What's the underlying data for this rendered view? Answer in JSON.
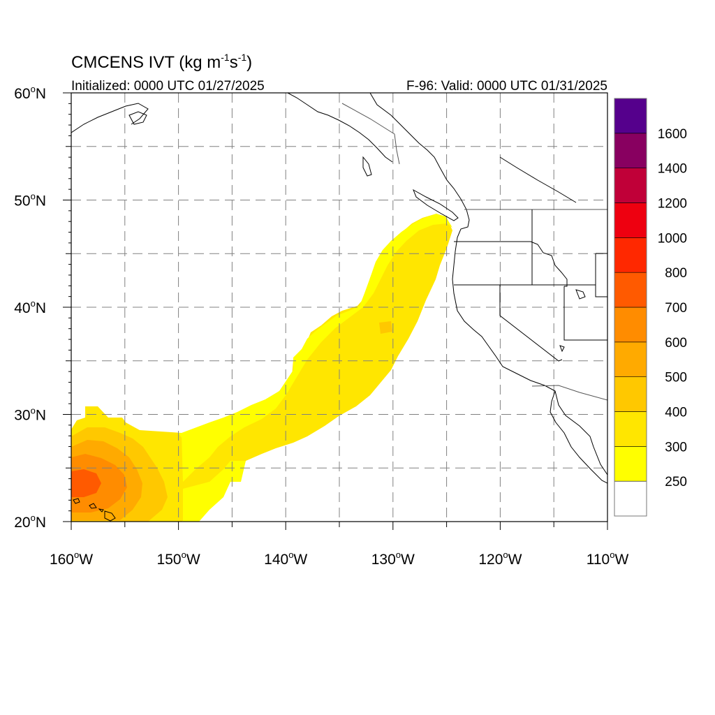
{
  "title": {
    "main": "CMCENS IVT (kg m",
    "sup1": "-1",
    "mid": "s",
    "sup2": "-1",
    "close": ")"
  },
  "subtitle_left": "Initialized: 0000 UTC 01/27/2025",
  "subtitle_right": "F-96: Valid: 0000 UTC 01/31/2025",
  "map": {
    "lon_range": [
      -160,
      -110
    ],
    "lat_range": [
      20,
      60
    ],
    "grid": "dashed, every 5 degrees",
    "lon_ticks": [
      {
        "num": "160",
        "hem": "W"
      },
      {
        "num": "150",
        "hem": "W"
      },
      {
        "num": "140",
        "hem": "W"
      },
      {
        "num": "130",
        "hem": "W"
      },
      {
        "num": "120",
        "hem": "W"
      },
      {
        "num": "110",
        "hem": "W"
      }
    ],
    "lat_ticks": [
      {
        "num": "60",
        "hem": "N"
      },
      {
        "num": "50",
        "hem": "N"
      },
      {
        "num": "40",
        "hem": "N"
      },
      {
        "num": "30",
        "hem": "N"
      },
      {
        "num": "20",
        "hem": "N"
      }
    ]
  },
  "colorbar": {
    "labels": [
      "250",
      "300",
      "400",
      "500",
      "600",
      "700",
      "800",
      "1000",
      "1200",
      "1400",
      "1600"
    ],
    "colors": [
      "#ffffff",
      "#ffff00",
      "#ffe600",
      "#ffc800",
      "#ffaa00",
      "#ff8c00",
      "#ff5a00",
      "#ff2800",
      "#ee0010",
      "#c00038",
      "#880060",
      "#55008c"
    ]
  },
  "colors": {
    "land_lines": "#000000",
    "grid": "#808080"
  }
}
